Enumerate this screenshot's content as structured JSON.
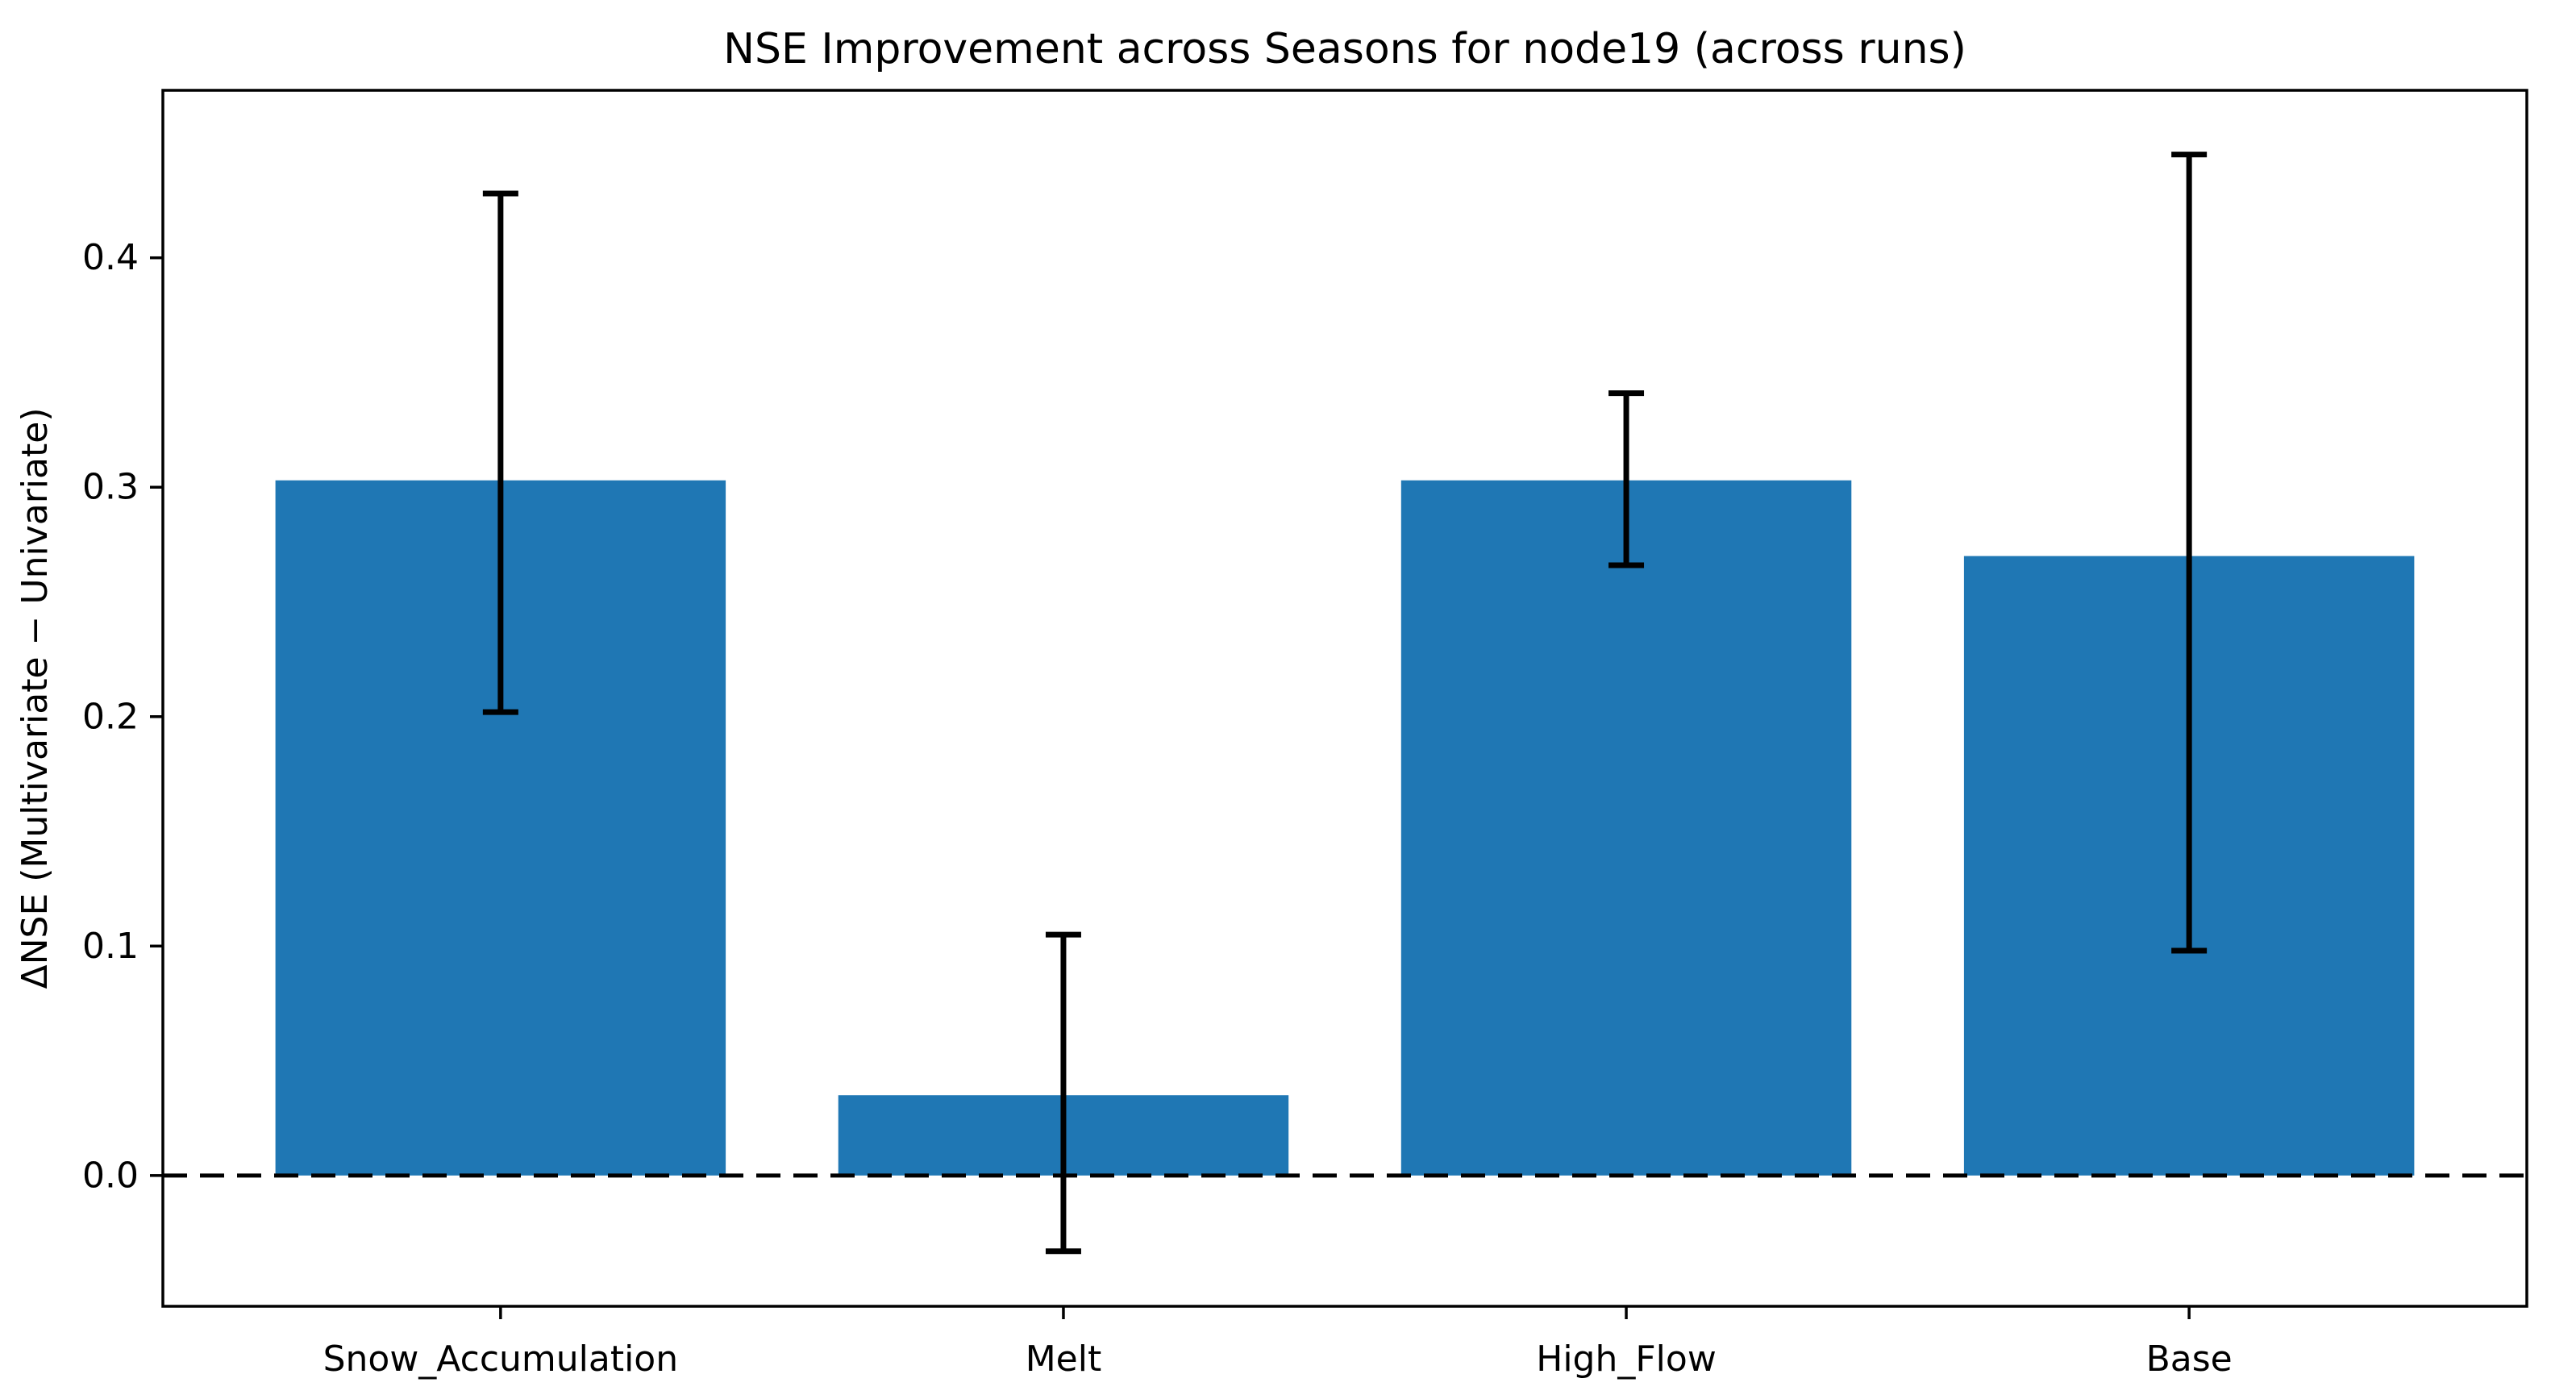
{
  "chart_data": {
    "type": "bar",
    "title": "NSE Improvement across Seasons for node19 (across runs)",
    "xlabel": "",
    "ylabel": "ΔNSE (Multivariate − Univariate)",
    "categories": [
      "Snow_Accumulation",
      "Melt",
      "High_Flow",
      "Base"
    ],
    "values": [
      0.303,
      0.035,
      0.303,
      0.27
    ],
    "error_low": [
      0.202,
      -0.033,
      0.266,
      0.098
    ],
    "error_high": [
      0.428,
      0.105,
      0.341,
      0.445
    ],
    "yticks": [
      0.0,
      0.1,
      0.2,
      0.3,
      0.4
    ],
    "ylim": [
      -0.057,
      0.473
    ],
    "bar_color": "#1f77b4",
    "error_color": "#000000",
    "zero_line": {
      "y": 0.0,
      "style": "dashed",
      "color": "#000000"
    },
    "grid": false,
    "legend": null,
    "background": "#ffffff"
  }
}
